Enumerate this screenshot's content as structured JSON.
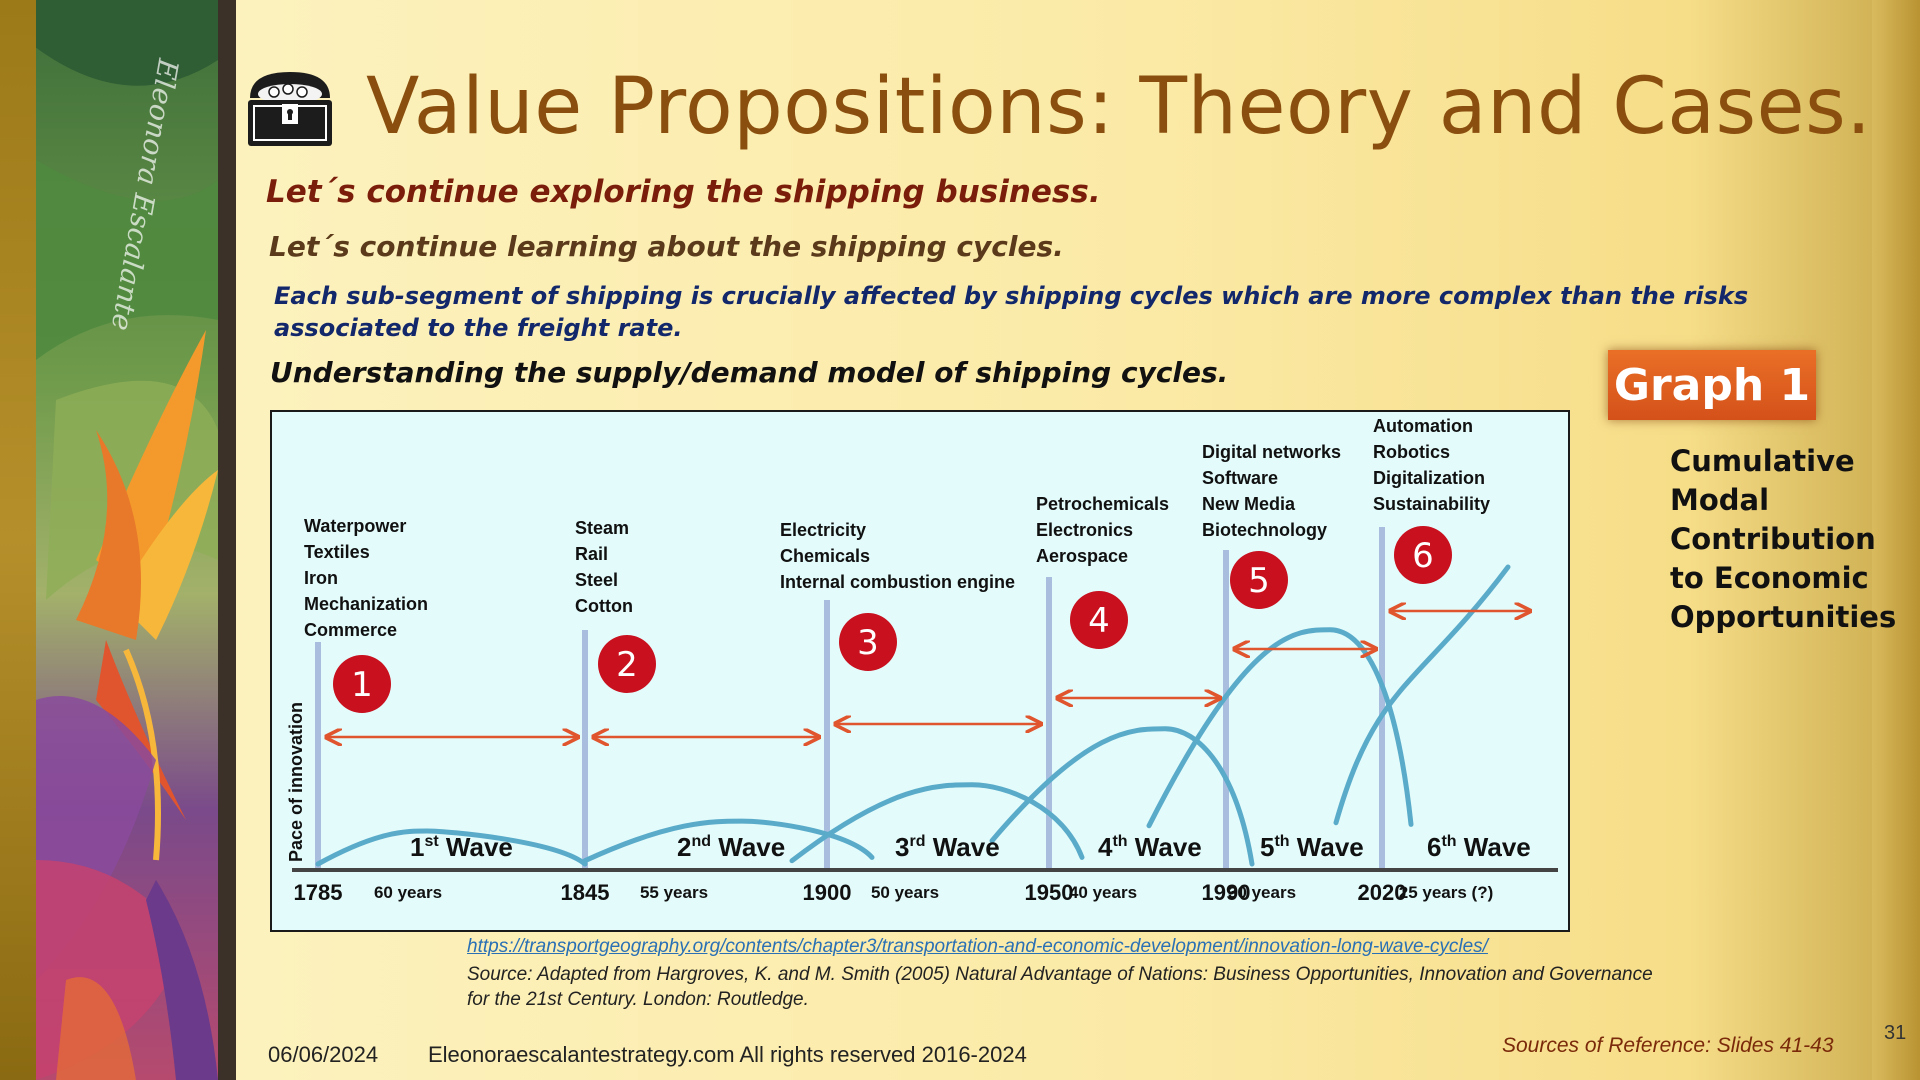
{
  "slide": {
    "title": "Value Propositions: Theory and Cases.",
    "heading_1": "Let´s continue exploring the shipping business.",
    "heading_2": "Let´s continue learning about the shipping cycles.",
    "heading_3": "Each sub-segment of shipping is crucially affected by shipping cycles which are more complex than the risks associated to the freight rate.",
    "heading_4": "Understanding the supply/demand model of shipping cycles.",
    "badge": "Graph 1",
    "caption": "Cumulative Modal Contribution to Economic Opportunities",
    "link": "https://transportgeography.org/contents/chapter3/transportation-and-economic-development/innovation-long-wave-cycles/",
    "source": "Source: Adapted from Hargroves, K. and M. Smith (2005) Natural Advantage of Nations: Business Opportunities, Innovation and Governance for the 21st Century. London: Routledge.",
    "date": "06/06/2024",
    "site": "Eleonoraescalantestrategy.com  All rights reserved 2016-2024",
    "references": "Sources of Reference: Slides 41-43",
    "page_number": "31",
    "artist_signature": "Eleonora Escalante",
    "chest_icon": "treasure-chest-icon"
  },
  "chart_data": {
    "type": "diagram",
    "ylabel": "Pace of innovation",
    "years": [
      "1785",
      "1845",
      "1900",
      "1950",
      "1990",
      "2020"
    ],
    "durations": [
      "60 years",
      "55 years",
      "50 years",
      "40 years",
      "30 years",
      "25 years (?)"
    ],
    "waves": [
      {
        "number": "1",
        "ordinal": "1",
        "suffix": "st",
        "label": "Wave",
        "start": 1785,
        "end": 1845,
        "peak_year": 1818,
        "peak_level": 0.1,
        "items": [
          "Waterpower",
          "Textiles",
          "Iron",
          "Mechanization",
          "Commerce"
        ]
      },
      {
        "number": "2",
        "ordinal": "2",
        "suffix": "nd",
        "label": "Wave",
        "start": 1845,
        "end": 1900,
        "peak_year": 1877,
        "peak_level": 0.13,
        "items": [
          "Steam",
          "Rail",
          "Steel",
          "Cotton"
        ]
      },
      {
        "number": "3",
        "ordinal": "3",
        "suffix": "rd",
        "label": "Wave",
        "start": 1900,
        "end": 1950,
        "peak_year": 1933,
        "peak_level": 0.24,
        "items": [
          "Electricity",
          "Chemicals",
          "Internal combustion engine"
        ]
      },
      {
        "number": "4",
        "ordinal": "4",
        "suffix": "th",
        "label": "Wave",
        "start": 1950,
        "end": 1990,
        "peak_year": 1975,
        "peak_level": 0.41,
        "items": [
          "Petrochemicals",
          "Electronics",
          "Aerospace"
        ]
      },
      {
        "number": "5",
        "ordinal": "5",
        "suffix": "th",
        "label": "Wave",
        "start": 1990,
        "end": 2020,
        "peak_year": 2012,
        "peak_level": 0.71,
        "items": [
          "Digital networks",
          "Software",
          "New Media",
          "Biotechnology"
        ]
      },
      {
        "number": "6",
        "ordinal": "6",
        "suffix": "th",
        "label": "Wave",
        "start": 2020,
        "end": 2045,
        "peak_year": 2045,
        "peak_level": 0.9,
        "items": [
          "Automation",
          "Robotics",
          "Digitalization",
          "Sustainability"
        ]
      }
    ],
    "colors": {
      "curve": "#5aabc9",
      "marker": "#a9bddf",
      "arrow": "#e0552d",
      "circle": "#c8101e",
      "axis": "#444444"
    }
  }
}
